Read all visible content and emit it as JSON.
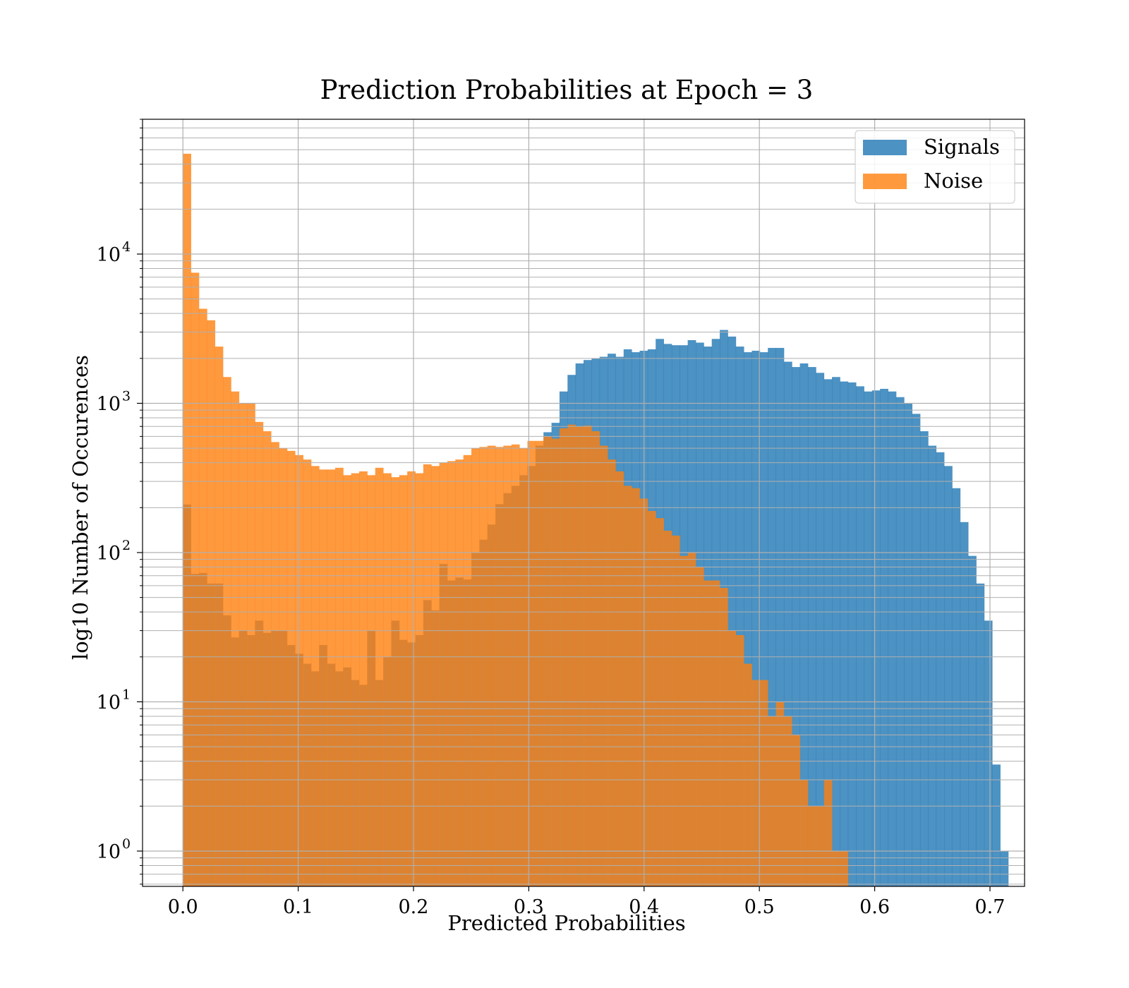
{
  "chart_data": {
    "type": "histogram",
    "title": "Prediction Probabilities at Epoch = 3",
    "xlabel": "Predicted Probabilities",
    "ylabel": "log10 Number of Occurences",
    "xlim": [
      -0.035,
      0.73
    ],
    "ylim": [
      0.58,
      80000
    ],
    "yscale": "log",
    "grid": true,
    "legend_position": "top-right",
    "x_ticks": [
      {
        "value": 0.0,
        "label": "0.0"
      },
      {
        "value": 0.1,
        "label": "0.1"
      },
      {
        "value": 0.2,
        "label": "0.2"
      },
      {
        "value": 0.3,
        "label": "0.3"
      },
      {
        "value": 0.4,
        "label": "0.4"
      },
      {
        "value": 0.5,
        "label": "0.5"
      },
      {
        "value": 0.6,
        "label": "0.6"
      },
      {
        "value": 0.7,
        "label": "0.7"
      }
    ],
    "y_ticks": [
      {
        "value": 1,
        "base": "10",
        "exp": "0"
      },
      {
        "value": 10,
        "base": "10",
        "exp": "1"
      },
      {
        "value": 100,
        "base": "10",
        "exp": "2"
      },
      {
        "value": 1000,
        "base": "10",
        "exp": "3"
      },
      {
        "value": 10000,
        "base": "10",
        "exp": "4"
      }
    ],
    "series": [
      {
        "name": "Signals",
        "color": "#1f77b4",
        "opacity": 0.8,
        "bin_start": 0.0,
        "bin_width": 0.00695,
        "values": [
          210,
          72,
          73,
          62,
          62,
          38,
          27,
          30,
          28,
          35,
          29,
          30,
          30,
          24,
          21,
          18,
          16,
          24,
          18,
          16,
          17,
          14,
          13,
          30,
          14,
          20,
          35,
          26,
          25,
          28,
          48,
          41,
          84,
          65,
          68,
          66,
          100,
          122,
          154,
          211,
          250,
          280,
          330,
          380,
          520,
          640,
          740,
          1200,
          1550,
          1850,
          1950,
          2000,
          2050,
          2150,
          2050,
          2300,
          2200,
          2250,
          2300,
          2700,
          2500,
          2450,
          2450,
          2650,
          2550,
          2400,
          2700,
          3100,
          2800,
          2400,
          2200,
          2250,
          2200,
          2350,
          2350,
          1900,
          1750,
          1850,
          1750,
          1600,
          1450,
          1500,
          1400,
          1380,
          1300,
          1200,
          1220,
          1250,
          1200,
          1100,
          1000,
          850,
          650,
          520,
          470,
          380,
          270,
          160,
          95,
          62,
          35,
          3.8,
          1
        ]
      },
      {
        "name": "Noise",
        "color": "#ff7f0e",
        "opacity": 0.8,
        "bin_start": 0.0,
        "bin_width": 0.00695,
        "values": [
          47000,
          7500,
          4300,
          3600,
          2400,
          1500,
          1200,
          1000,
          1000,
          750,
          650,
          550,
          500,
          480,
          450,
          420,
          380,
          360,
          360,
          370,
          330,
          340,
          350,
          330,
          370,
          340,
          320,
          330,
          350,
          340,
          390,
          380,
          400,
          410,
          420,
          450,
          500,
          510,
          520,
          510,
          520,
          530,
          500,
          560,
          560,
          600,
          580,
          680,
          720,
          700,
          710,
          650,
          520,
          420,
          350,
          280,
          270,
          230,
          190,
          170,
          140,
          130,
          95,
          100,
          80,
          65,
          65,
          58,
          30,
          28,
          18,
          14,
          14,
          8,
          10,
          8,
          6,
          3,
          2,
          2,
          3,
          1,
          1
        ]
      }
    ]
  }
}
